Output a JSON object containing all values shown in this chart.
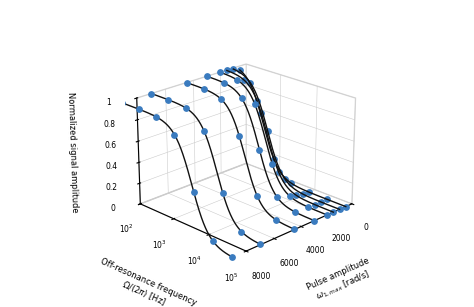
{
  "title": "",
  "xlabel": "Pulse amplitude\n$\\omega_{1,max}$ [rad/s]",
  "ylabel": "Off-resonance frequency\n$\\Omega/(2\\pi)$ [Hz]",
  "zlabel": "Normalized signal amplitude",
  "pulse_amplitudes": [
    500,
    1000,
    1500,
    2000,
    3000,
    4500,
    7000,
    9000
  ],
  "ylim_log": [
    2,
    5
  ],
  "xlim": [
    0,
    8000
  ],
  "zlim": [
    0,
    1
  ],
  "line_color": "#111111",
  "dot_color": "#3a7bbf",
  "background_color": "#ffffff",
  "grid_color": "#cccccc",
  "figsize": [
    4.74,
    3.07
  ],
  "dpi": 100,
  "elev": 22,
  "azim": 225
}
